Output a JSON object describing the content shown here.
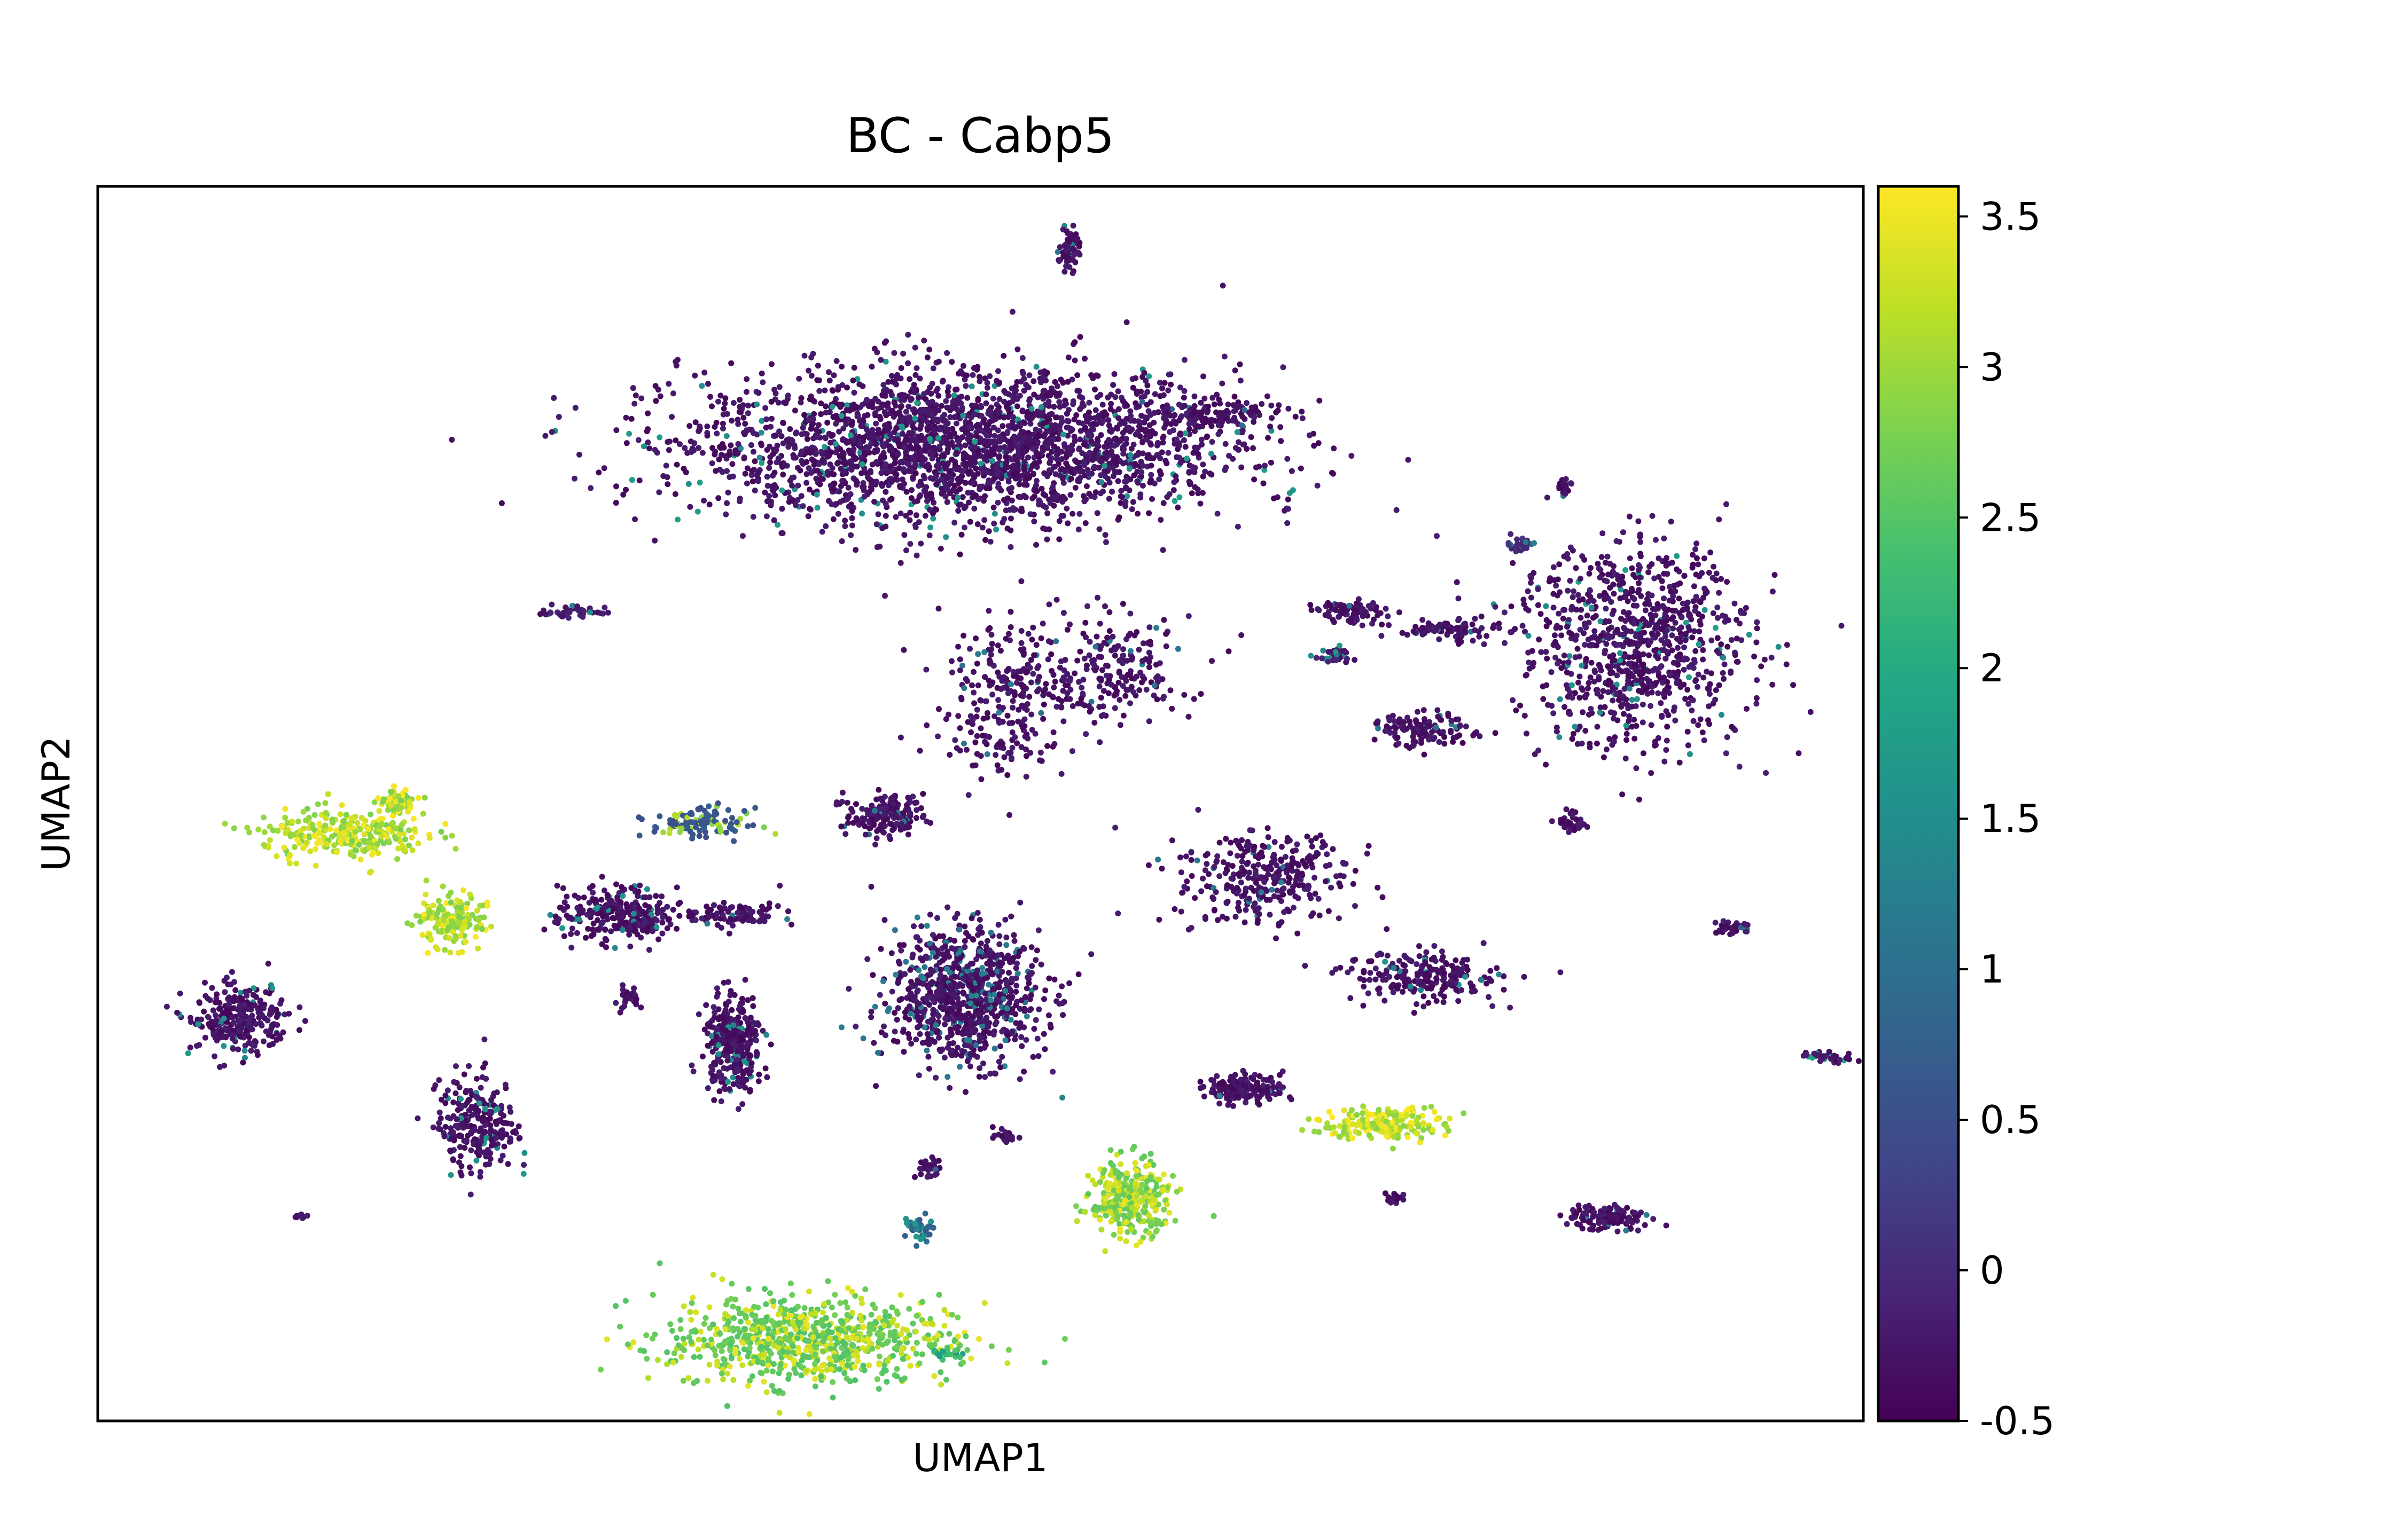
{
  "chart_data": {
    "type": "scatter",
    "title": "BC - Cabp5",
    "xlabel": "UMAP1",
    "ylabel": "UMAP2",
    "x_ticks_shown": false,
    "y_ticks_shown": false,
    "grid": false,
    "legend": "none",
    "colormap": "viridis",
    "colorbar": {
      "range": [
        -0.5,
        3.6
      ],
      "ticks": [
        {
          "value": -0.5,
          "label": "-0.5"
        },
        {
          "value": 0,
          "label": "0"
        },
        {
          "value": 0.5,
          "label": "0.5"
        },
        {
          "value": 1,
          "label": "1"
        },
        {
          "value": 1.5,
          "label": "1.5"
        },
        {
          "value": 2,
          "label": "2"
        },
        {
          "value": 2.5,
          "label": "2.5"
        },
        {
          "value": 3,
          "label": "3"
        },
        {
          "value": 3.5,
          "label": "3.5"
        }
      ]
    },
    "xlim": [
      0,
      100
    ],
    "ylim": [
      0,
      100
    ],
    "clusters": [
      {
        "cx": 49.0,
        "cy": 79.0,
        "sx": 14.0,
        "sy": 5.5,
        "n": 2600,
        "base": -0.3,
        "hi": 1.6,
        "hi_frac": 0.05
      },
      {
        "cx": 87.0,
        "cy": 63.0,
        "sx": 6.0,
        "sy": 7.5,
        "n": 900,
        "base": -0.3,
        "hi": 1.6,
        "hi_frac": 0.06
      },
      {
        "cx": 49.0,
        "cy": 34.5,
        "sx": 4.0,
        "sy": 5.0,
        "n": 850,
        "base": -0.3,
        "hi": 1.2,
        "hi_frac": 0.15
      },
      {
        "cx": 40.0,
        "cy": 6.5,
        "sx": 7.5,
        "sy": 3.2,
        "n": 800,
        "base": 2.6,
        "hi": 3.3,
        "hi_frac": 0.35
      },
      {
        "cx": 14.0,
        "cy": 47.5,
        "sx": 4.2,
        "sy": 1.8,
        "n": 280,
        "base": 2.9,
        "hi": 3.4,
        "hi_frac": 0.5
      },
      {
        "cx": 20.0,
        "cy": 40.5,
        "sx": 1.6,
        "sy": 2.0,
        "n": 160,
        "base": 2.9,
        "hi": 3.4,
        "hi_frac": 0.5
      },
      {
        "cx": 17.0,
        "cy": 50.0,
        "sx": 1.0,
        "sy": 1.0,
        "n": 70,
        "base": 2.9,
        "hi": 3.5,
        "hi_frac": 0.5
      },
      {
        "cx": 58.5,
        "cy": 18.0,
        "sx": 2.0,
        "sy": 2.8,
        "n": 320,
        "base": 2.7,
        "hi": 3.3,
        "hi_frac": 0.45
      },
      {
        "cx": 73.0,
        "cy": 24.0,
        "sx": 3.2,
        "sy": 1.2,
        "n": 200,
        "base": 3.0,
        "hi": 3.5,
        "hi_frac": 0.5
      },
      {
        "cx": 29.5,
        "cy": 41.0,
        "sx": 3.0,
        "sy": 2.0,
        "n": 260,
        "base": -0.3,
        "hi": 1.5,
        "hi_frac": 0.06
      },
      {
        "cx": 8.0,
        "cy": 32.5,
        "sx": 2.5,
        "sy": 2.5,
        "n": 260,
        "base": -0.3,
        "hi": 1.5,
        "hi_frac": 0.05
      },
      {
        "cx": 21.5,
        "cy": 24.0,
        "sx": 2.0,
        "sy": 3.5,
        "n": 260,
        "base": -0.3,
        "hi": 1.5,
        "hi_frac": 0.08
      },
      {
        "cx": 36.0,
        "cy": 30.5,
        "sx": 1.5,
        "sy": 3.5,
        "n": 300,
        "base": -0.3,
        "hi": 1.5,
        "hi_frac": 0.06
      },
      {
        "cx": 34.0,
        "cy": 48.5,
        "sx": 2.5,
        "sy": 1.0,
        "n": 120,
        "base": 0.6,
        "hi": 3.0,
        "hi_frac": 0.3
      },
      {
        "cx": 36.0,
        "cy": 41.0,
        "sx": 2.5,
        "sy": 1.0,
        "n": 100,
        "base": -0.3,
        "hi": 1.2,
        "hi_frac": 0.05
      },
      {
        "cx": 44.5,
        "cy": 49.0,
        "sx": 2.0,
        "sy": 1.5,
        "n": 160,
        "base": -0.3,
        "hi": 1.2,
        "hi_frac": 0.04
      },
      {
        "cx": 65.0,
        "cy": 27.0,
        "sx": 2.0,
        "sy": 1.0,
        "n": 160,
        "base": -0.3,
        "hi": 1.2,
        "hi_frac": 0.05
      },
      {
        "cx": 85.5,
        "cy": 16.5,
        "sx": 2.0,
        "sy": 0.9,
        "n": 140,
        "base": -0.3,
        "hi": 1.2,
        "hi_frac": 0.05
      },
      {
        "cx": 66.0,
        "cy": 44.0,
        "sx": 4.5,
        "sy": 3.5,
        "n": 330,
        "base": -0.3,
        "hi": 1.2,
        "hi_frac": 0.05
      },
      {
        "cx": 75.0,
        "cy": 36.0,
        "sx": 4.0,
        "sy": 1.8,
        "n": 220,
        "base": -0.3,
        "hi": 1.4,
        "hi_frac": 0.06
      },
      {
        "cx": 75.0,
        "cy": 56.0,
        "sx": 2.5,
        "sy": 1.2,
        "n": 120,
        "base": -0.3,
        "hi": 1.2,
        "hi_frac": 0.05
      },
      {
        "cx": 51.5,
        "cy": 58.5,
        "sx": 3.5,
        "sy": 6.0,
        "n": 260,
        "base": -0.3,
        "hi": 1.2,
        "hi_frac": 0.04
      },
      {
        "cx": 57.5,
        "cy": 61.0,
        "sx": 4.0,
        "sy": 4.0,
        "n": 200,
        "base": -0.3,
        "hi": 1.2,
        "hi_frac": 0.04
      },
      {
        "cx": 63.0,
        "cy": 81.5,
        "sx": 4.0,
        "sy": 1.0,
        "n": 120,
        "base": -0.3,
        "hi": 1.0,
        "hi_frac": 0.03
      },
      {
        "cx": 76.5,
        "cy": 64.0,
        "sx": 2.5,
        "sy": 0.8,
        "n": 80,
        "base": -0.3,
        "hi": 1.0,
        "hi_frac": 0.03
      },
      {
        "cx": 71.0,
        "cy": 65.5,
        "sx": 2.0,
        "sy": 0.8,
        "n": 80,
        "base": -0.3,
        "hi": 1.0,
        "hi_frac": 0.03
      },
      {
        "cx": 55.0,
        "cy": 95.0,
        "sx": 0.5,
        "sy": 1.6,
        "n": 60,
        "base": -0.3,
        "hi": 1.2,
        "hi_frac": 0.1
      },
      {
        "cx": 27.0,
        "cy": 65.5,
        "sx": 2.0,
        "sy": 0.5,
        "n": 40,
        "base": -0.2,
        "hi": 1.5,
        "hi_frac": 0.1
      },
      {
        "cx": 92.5,
        "cy": 40.0,
        "sx": 1.0,
        "sy": 0.5,
        "n": 40,
        "base": -0.3,
        "hi": 1.0,
        "hi_frac": 0.05
      },
      {
        "cx": 98.0,
        "cy": 29.5,
        "sx": 1.5,
        "sy": 0.4,
        "n": 40,
        "base": -0.3,
        "hi": 1.8,
        "hi_frac": 0.2
      },
      {
        "cx": 83.5,
        "cy": 48.5,
        "sx": 0.7,
        "sy": 0.8,
        "n": 40,
        "base": -0.3,
        "hi": 1.0,
        "hi_frac": 0.05
      },
      {
        "cx": 47.0,
        "cy": 20.5,
        "sx": 0.6,
        "sy": 0.8,
        "n": 30,
        "base": -0.3,
        "hi": 1.0,
        "hi_frac": 0.05
      },
      {
        "cx": 46.5,
        "cy": 15.5,
        "sx": 0.8,
        "sy": 1.0,
        "n": 40,
        "base": 0.8,
        "hi": 1.6,
        "hi_frac": 0.4
      },
      {
        "cx": 80.5,
        "cy": 71.0,
        "sx": 0.7,
        "sy": 0.5,
        "n": 30,
        "base": 0.0,
        "hi": 1.0,
        "hi_frac": 0.2
      },
      {
        "cx": 70.0,
        "cy": 62.0,
        "sx": 1.0,
        "sy": 0.6,
        "n": 40,
        "base": -0.2,
        "hi": 1.5,
        "hi_frac": 0.3
      },
      {
        "cx": 83.0,
        "cy": 75.5,
        "sx": 0.4,
        "sy": 0.7,
        "n": 25,
        "base": -0.3,
        "hi": 1.0,
        "hi_frac": 0.05
      },
      {
        "cx": 30.0,
        "cy": 34.0,
        "sx": 0.5,
        "sy": 0.9,
        "n": 25,
        "base": -0.3,
        "hi": 1.0,
        "hi_frac": 0.05
      },
      {
        "cx": 73.5,
        "cy": 18.0,
        "sx": 0.4,
        "sy": 0.5,
        "n": 15,
        "base": -0.3,
        "hi": 1.0,
        "hi_frac": 0.05
      },
      {
        "cx": 11.5,
        "cy": 16.5,
        "sx": 0.4,
        "sy": 0.3,
        "n": 10,
        "base": -0.3,
        "hi": 1.0,
        "hi_frac": 0.05
      },
      {
        "cx": 51.5,
        "cy": 23.0,
        "sx": 0.6,
        "sy": 0.8,
        "n": 20,
        "base": -0.3,
        "hi": 1.0,
        "hi_frac": 0.05
      },
      {
        "cx": 48.0,
        "cy": 5.5,
        "sx": 0.8,
        "sy": 0.3,
        "n": 20,
        "base": 1.8,
        "hi": 2.4,
        "hi_frac": 0.5
      }
    ]
  }
}
